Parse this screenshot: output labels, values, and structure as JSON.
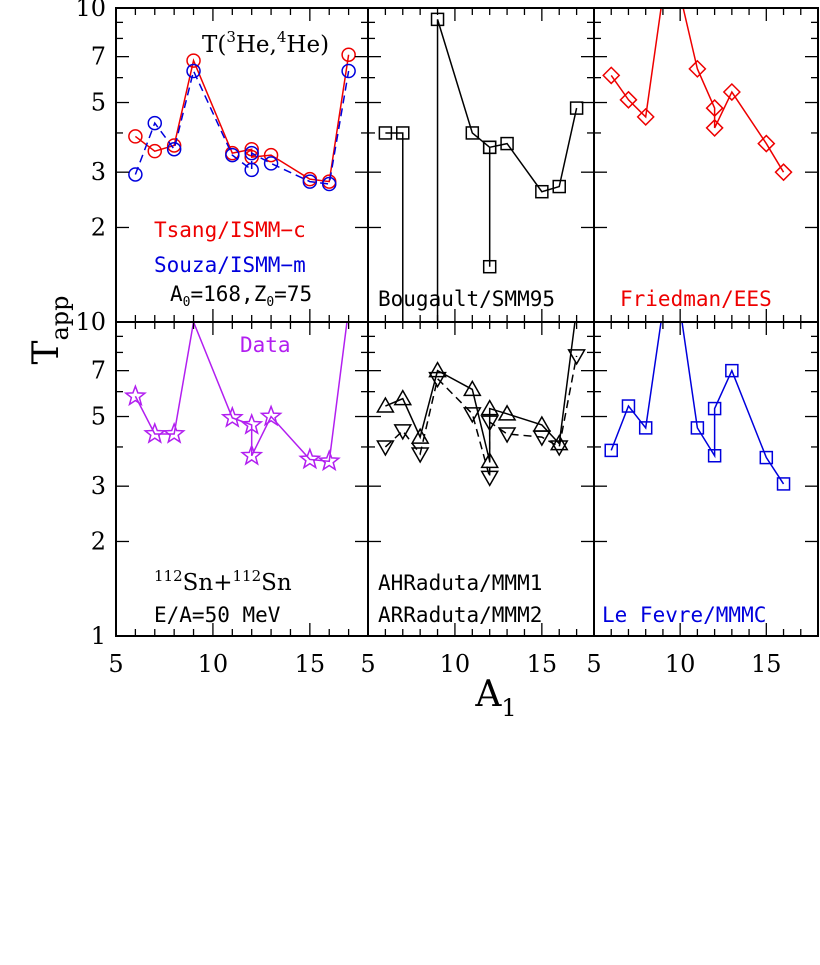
{
  "figure": {
    "ylabel_main": "T",
    "ylabel_sub": "app",
    "xlabel_main": "A",
    "xlabel_sub": "1",
    "xticks": [
      5,
      10,
      15
    ],
    "yticks": [
      1,
      2,
      3,
      5,
      7,
      10
    ]
  },
  "annotations": {
    "thermometer_T": "T(",
    "thermometer_he3": "3",
    "thermometer_he3_el": "He,",
    "thermometer_he4": "4",
    "thermometer_he4_el": "He)",
    "source_a0": "A",
    "source_a0_sub": "0",
    "source_a0_val": "=168,Z",
    "source_z0_sub": "0",
    "source_z0_val": "=75",
    "reaction_sup1": "112",
    "reaction_sn1": "Sn+",
    "reaction_sup2": "112",
    "reaction_sn2": "Sn",
    "energy": "E/A=50 MeV"
  },
  "colors": {
    "red": "#ee0000",
    "blue": "#0000dd",
    "purple": "#b21ff0",
    "black": "#000000"
  },
  "chart_data": [
    {
      "type": "line",
      "panel": "top-left",
      "x_range": [
        5,
        18
      ],
      "y_range": [
        1,
        10
      ],
      "y_scale": "log",
      "labels": [
        {
          "text": "Tsang/ISMM−c",
          "color": "#ee0000"
        },
        {
          "text": "Souza/ISMM−m",
          "color": "#0000dd"
        }
      ],
      "series": [
        {
          "name": "Tsang/ISMM−c",
          "color": "#ee0000",
          "marker": "circle",
          "dash": "solid",
          "x": [
            6,
            7,
            8,
            9,
            11,
            12,
            12,
            13,
            15,
            16,
            17
          ],
          "y": [
            3.9,
            3.5,
            3.65,
            6.8,
            3.45,
            3.55,
            3.35,
            3.4,
            2.85,
            2.8,
            7.1
          ]
        },
        {
          "name": "Souza/ISMM−m",
          "color": "#0000dd",
          "marker": "circle",
          "dash": "dashed",
          "x": [
            6,
            7,
            8,
            9,
            11,
            12,
            12,
            13,
            15,
            16,
            17
          ],
          "y": [
            2.95,
            4.3,
            3.55,
            6.3,
            3.4,
            3.05,
            3.45,
            3.2,
            2.8,
            2.75,
            6.3
          ]
        }
      ]
    },
    {
      "type": "line",
      "panel": "top-middle",
      "x_range": [
        5,
        18
      ],
      "y_range": [
        1,
        10
      ],
      "y_scale": "log",
      "labels": [
        {
          "text": "Bougault/SMM95",
          "color": "#000000"
        }
      ],
      "series": [
        {
          "name": "Bougault/SMM95",
          "color": "#000000",
          "marker": "square",
          "dash": "solid",
          "x": [
            6,
            7,
            7,
            9,
            9,
            11,
            12,
            12,
            12,
            13,
            15,
            16,
            17
          ],
          "y": [
            4.0,
            4.0,
            1.0,
            1.0,
            9.2,
            4.0,
            3.6,
            1.5,
            3.6,
            3.7,
            2.6,
            2.7,
            4.8
          ]
        }
      ]
    },
    {
      "type": "line",
      "panel": "top-right",
      "x_range": [
        5,
        18
      ],
      "y_range": [
        1,
        10
      ],
      "y_scale": "log",
      "labels": [
        {
          "text": "Friedman/EES",
          "color": "#ee0000"
        }
      ],
      "series": [
        {
          "name": "Friedman/EES",
          "color": "#ee0000",
          "marker": "diamond",
          "dash": "solid",
          "x": [
            6,
            7,
            8,
            9,
            10,
            11,
            12,
            12,
            13,
            15,
            16
          ],
          "y": [
            6.1,
            5.1,
            4.5,
            11,
            11,
            6.4,
            4.8,
            4.15,
            5.4,
            3.7,
            3.0
          ]
        }
      ]
    },
    {
      "type": "line",
      "panel": "bottom-left",
      "x_range": [
        5,
        18
      ],
      "y_range": [
        1,
        10
      ],
      "y_scale": "log",
      "labels": [
        {
          "text": "Data",
          "color": "#b21ff0"
        }
      ],
      "series": [
        {
          "name": "Data",
          "color": "#b21ff0",
          "marker": "star",
          "dash": "solid",
          "x": [
            6,
            7,
            8,
            9,
            11,
            12,
            12,
            13,
            15,
            16,
            17
          ],
          "y": [
            5.8,
            4.4,
            4.4,
            10,
            4.95,
            4.7,
            3.75,
            5.0,
            3.65,
            3.6,
            11
          ]
        }
      ]
    },
    {
      "type": "line",
      "panel": "bottom-middle",
      "x_range": [
        5,
        18
      ],
      "y_range": [
        1,
        10
      ],
      "y_scale": "log",
      "labels": [
        {
          "text": "AHRaduta/MMM1",
          "color": "#000000"
        },
        {
          "text": "ARRaduta/MMM2",
          "color": "#000000"
        }
      ],
      "series": [
        {
          "name": "AHRaduta/MMM1",
          "color": "#000000",
          "marker": "triangle-up",
          "dash": "solid",
          "x": [
            6,
            7,
            8,
            9,
            11,
            12,
            12,
            13,
            15,
            16,
            17
          ],
          "y": [
            5.4,
            5.7,
            4.3,
            7.0,
            6.1,
            3.6,
            5.3,
            5.1,
            4.7,
            4.1,
            11
          ]
        },
        {
          "name": "ARRaduta/MMM2",
          "color": "#000000",
          "marker": "triangle-down",
          "dash": "dashed",
          "x": [
            6,
            7,
            8,
            9,
            11,
            12,
            12,
            13,
            15,
            16,
            17
          ],
          "y": [
            4.0,
            4.5,
            3.8,
            6.6,
            5.1,
            3.2,
            4.8,
            4.4,
            4.3,
            4.0,
            7.8
          ]
        }
      ]
    },
    {
      "type": "line",
      "panel": "bottom-right",
      "x_range": [
        5,
        18
      ],
      "y_range": [
        1,
        10
      ],
      "y_scale": "log",
      "labels": [
        {
          "text": "Le Fevre/MMMC",
          "color": "#0000dd"
        }
      ],
      "series": [
        {
          "name": "Le Fevre/MMMC",
          "color": "#0000dd",
          "marker": "square",
          "dash": "solid",
          "x": [
            6,
            7,
            8,
            9,
            10,
            11,
            12,
            12,
            13,
            15,
            16
          ],
          "y": [
            3.9,
            5.4,
            4.6,
            11,
            11,
            4.6,
            3.75,
            5.3,
            7.0,
            3.7,
            3.05
          ]
        }
      ]
    }
  ]
}
